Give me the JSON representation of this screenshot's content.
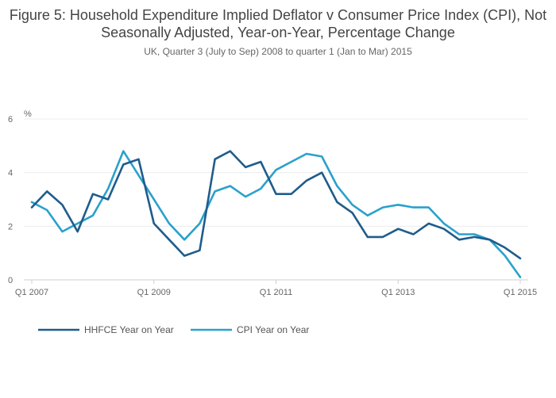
{
  "title": "Figure 5: Household Expenditure Implied Deflator v Consumer Price Index (CPI), Not Seasonally Adjusted, Year-on-Year, Percentage Change",
  "subtitle": "UK, Quarter 3 (July to Sep) 2008 to quarter 1 (Jan to Mar) 2015",
  "chart_data": {
    "type": "line",
    "title": "Figure 5: Household Expenditure Implied Deflator v Consumer Price Index (CPI), Not Seasonally Adjusted, Year-on-Year, Percentage Change",
    "ylabel": "%",
    "xlabel": "",
    "ylim": [
      0,
      6
    ],
    "yticks": [
      "0",
      "2",
      "4",
      "6"
    ],
    "x_tick_labels": [
      "Q1 2007",
      "Q1 2009",
      "Q1 2011",
      "Q1 2013",
      "Q1 2015"
    ],
    "x_tick_index": [
      0,
      8,
      16,
      24,
      32
    ],
    "x": [
      "Q1 2007",
      "Q2 2007",
      "Q3 2007",
      "Q4 2007",
      "Q1 2008",
      "Q2 2008",
      "Q3 2008",
      "Q4 2008",
      "Q1 2009",
      "Q2 2009",
      "Q3 2009",
      "Q4 2009",
      "Q1 2010",
      "Q2 2010",
      "Q3 2010",
      "Q4 2010",
      "Q1 2011",
      "Q2 2011",
      "Q3 2011",
      "Q4 2011",
      "Q1 2012",
      "Q2 2012",
      "Q3 2012",
      "Q4 2012",
      "Q1 2013",
      "Q2 2013",
      "Q3 2013",
      "Q4 2013",
      "Q1 2014",
      "Q2 2014",
      "Q3 2014",
      "Q4 2014",
      "Q1 2015"
    ],
    "series": [
      {
        "name": "HHFCE Year on Year",
        "color": "#1f5c8b",
        "values": [
          2.7,
          3.3,
          2.8,
          1.8,
          3.2,
          3.0,
          4.3,
          4.5,
          2.1,
          1.5,
          0.9,
          1.1,
          4.5,
          4.8,
          4.2,
          4.4,
          3.2,
          3.2,
          3.7,
          4.0,
          2.9,
          2.5,
          1.6,
          1.6,
          1.9,
          1.7,
          2.1,
          1.9,
          1.5,
          1.6,
          1.5,
          1.2,
          0.8
        ]
      },
      {
        "name": "CPI Year on Year",
        "color": "#2aa1cc",
        "values": [
          2.9,
          2.6,
          1.8,
          2.1,
          2.4,
          3.4,
          4.8,
          3.9,
          3.0,
          2.1,
          1.5,
          2.1,
          3.3,
          3.5,
          3.1,
          3.4,
          4.1,
          4.4,
          4.7,
          4.6,
          3.5,
          2.8,
          2.4,
          2.7,
          2.8,
          2.7,
          2.7,
          2.1,
          1.7,
          1.7,
          1.5,
          0.9,
          0.1
        ]
      }
    ],
    "legend_position": "bottom-left"
  }
}
